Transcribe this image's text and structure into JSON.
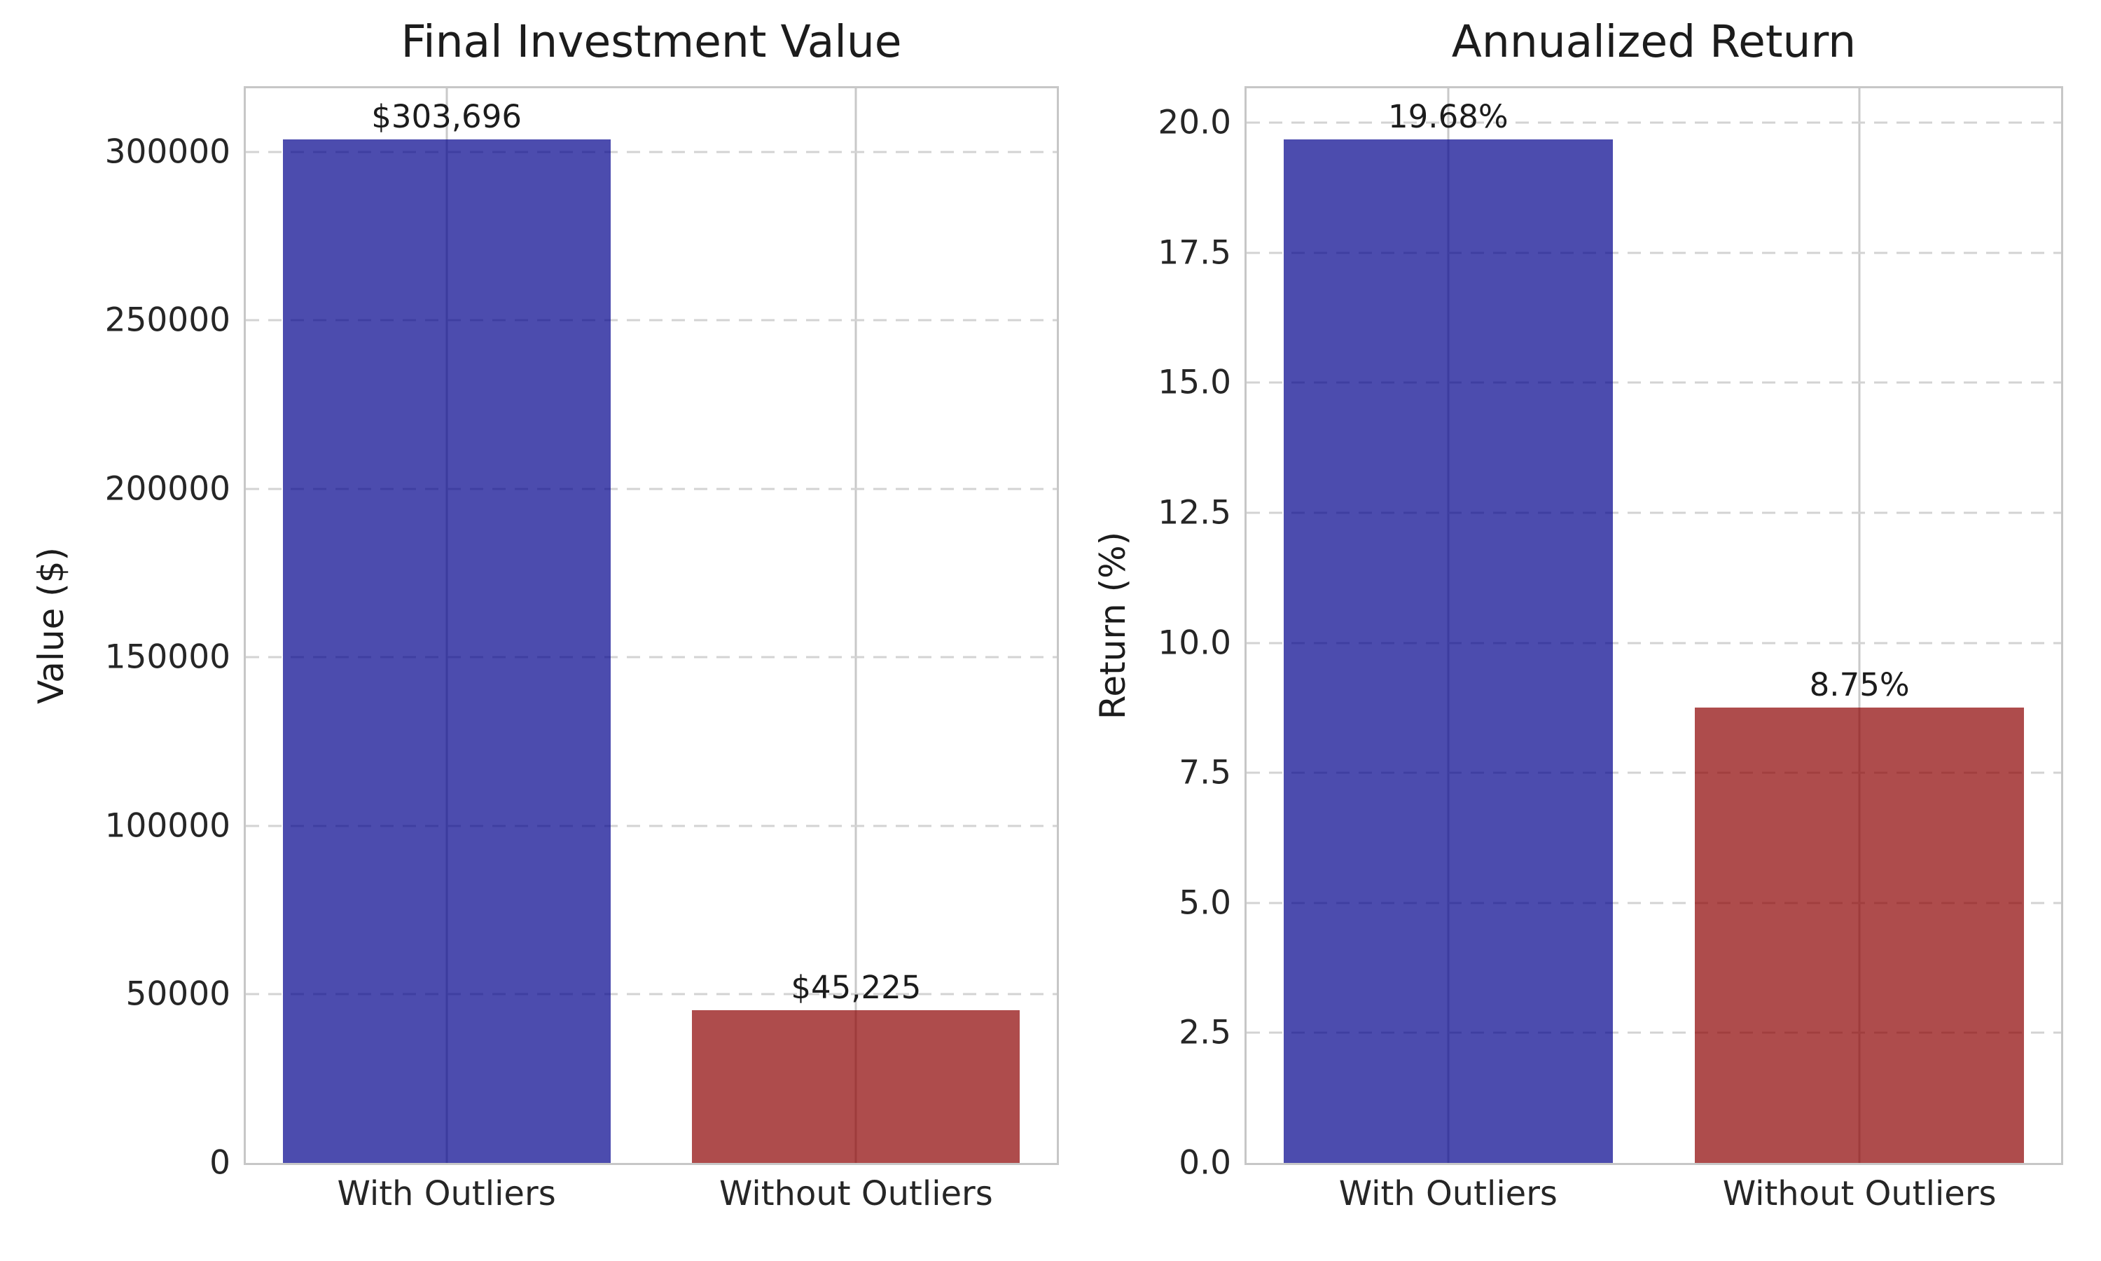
{
  "styles": {
    "background": "#ffffff",
    "bar_blue": "rgba(0,0,139,0.7)",
    "bar_red": "rgba(139,0,0,0.7)",
    "bar_blue_flat": "#4d4dae",
    "bar_red_flat": "#ae4d4d",
    "grid_color": "#d3d3d3",
    "spine_color": "#c7c7c7",
    "text_color": "#1c1c1c"
  },
  "chart_data": [
    {
      "type": "bar",
      "title": "Final Investment Value",
      "ylabel": "Value ($)",
      "xlabel": "",
      "categories": [
        "With Outliers",
        "Without Outliers"
      ],
      "values": [
        303696,
        45225
      ],
      "bar_labels": [
        "$303,696",
        "$45,225"
      ],
      "bar_colors": [
        "rgba(0,0,139,0.7)",
        "rgba(139,0,0,0.7)"
      ],
      "ylim": [
        0,
        318881
      ],
      "ytick_values": [
        0,
        50000,
        100000,
        150000,
        200000,
        250000,
        300000
      ],
      "ytick_labels": [
        "0",
        "50000",
        "100000",
        "150000",
        "200000",
        "250000",
        "300000"
      ],
      "grid": {
        "y": "dashed",
        "x": "solid"
      },
      "legend": "none"
    },
    {
      "type": "bar",
      "title": "Annualized Return",
      "ylabel": "Return (%)",
      "xlabel": "",
      "categories": [
        "With Outliers",
        "Without Outliers"
      ],
      "values": [
        19.68,
        8.75
      ],
      "bar_labels": [
        "19.68%",
        "8.75%"
      ],
      "bar_colors": [
        "rgba(0,0,139,0.7)",
        "rgba(139,0,0,0.7)"
      ],
      "ylim": [
        0,
        20.664
      ],
      "ytick_values": [
        0,
        2.5,
        5,
        7.5,
        10,
        12.5,
        15,
        17.5,
        20
      ],
      "ytick_labels": [
        "0.0",
        "2.5",
        "5.0",
        "7.5",
        "10.0",
        "12.5",
        "15.0",
        "17.5",
        "20.0"
      ],
      "grid": {
        "y": "dashed",
        "x": "solid"
      },
      "legend": "none"
    }
  ]
}
